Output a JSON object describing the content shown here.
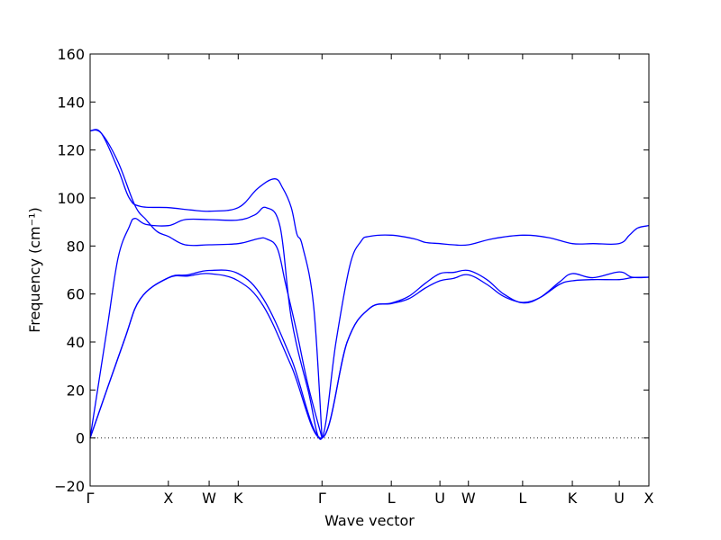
{
  "chart_data": {
    "type": "line",
    "xlabel": "Wave vector",
    "ylabel": "Frequency (cm⁻¹)",
    "ylim": [
      -20,
      160
    ],
    "yticks": [
      -20,
      0,
      20,
      40,
      60,
      80,
      100,
      120,
      140,
      160
    ],
    "xlim": [
      0,
      100
    ],
    "grid": false,
    "zero_line": {
      "y": 0,
      "style": "dotted"
    },
    "high_symmetry_points": [
      {
        "label": "Γ",
        "x": 0
      },
      {
        "label": "X",
        "x": 14
      },
      {
        "label": "W",
        "x": 21.3
      },
      {
        "label": "K",
        "x": 26.5
      },
      {
        "label": "Γ",
        "x": 41.5
      },
      {
        "label": "L",
        "x": 53.9
      },
      {
        "label": "U",
        "x": 62.6
      },
      {
        "label": "W",
        "x": 67.7
      },
      {
        "label": "L",
        "x": 77.4
      },
      {
        "label": "K",
        "x": 86.3
      },
      {
        "label": "U",
        "x": 94.7
      },
      {
        "label": "X",
        "x": 100
      }
    ],
    "series": [
      {
        "values": [
          [
            0,
            0
          ],
          [
            6,
            40
          ],
          [
            9,
            58
          ],
          [
            14,
            66.7
          ],
          [
            17.5,
            67.5
          ],
          [
            21.3,
            68.5
          ],
          [
            26.5,
            65.5
          ],
          [
            31,
            55
          ],
          [
            36,
            30
          ],
          [
            41.5,
            0
          ],
          [
            46,
            40
          ],
          [
            50,
            54
          ],
          [
            53.9,
            56
          ],
          [
            57,
            58
          ],
          [
            60,
            62.5
          ],
          [
            62.6,
            65.5
          ],
          [
            65,
            66.5
          ],
          [
            67.7,
            68
          ],
          [
            71,
            64
          ],
          [
            74,
            59
          ],
          [
            77.4,
            56.5
          ],
          [
            80.5,
            58.5
          ],
          [
            84,
            64
          ],
          [
            86.3,
            65.5
          ],
          [
            90,
            66
          ],
          [
            94.7,
            66
          ],
          [
            97,
            66.8
          ],
          [
            100,
            67
          ]
        ]
      },
      {
        "values": [
          [
            0,
            0
          ],
          [
            6,
            40
          ],
          [
            9,
            58
          ],
          [
            14,
            66.8
          ],
          [
            17.5,
            68
          ],
          [
            21.3,
            69.8
          ],
          [
            26.5,
            68.5
          ],
          [
            31,
            58
          ],
          [
            36,
            33
          ],
          [
            41.5,
            0
          ],
          [
            46,
            40
          ],
          [
            50,
            54
          ],
          [
            53.9,
            56.2
          ],
          [
            57,
            59
          ],
          [
            60,
            64.5
          ],
          [
            62.6,
            68.5
          ],
          [
            65,
            69
          ],
          [
            67.7,
            69.8
          ],
          [
            71,
            66
          ],
          [
            74,
            60
          ],
          [
            77.4,
            56.3
          ],
          [
            80.5,
            58.5
          ],
          [
            84,
            65
          ],
          [
            86.3,
            68.5
          ],
          [
            90,
            66.8
          ],
          [
            94.7,
            69.2
          ],
          [
            97,
            67
          ],
          [
            100,
            67
          ]
        ]
      },
      {
        "values": [
          [
            0,
            0
          ],
          [
            3,
            45
          ],
          [
            5,
            75
          ],
          [
            7,
            88
          ],
          [
            8,
            91.5
          ],
          [
            10,
            89
          ],
          [
            14,
            88.5
          ],
          [
            17,
            91
          ],
          [
            21.3,
            91
          ],
          [
            26.5,
            90.8
          ],
          [
            29.5,
            93
          ],
          [
            31.5,
            96
          ],
          [
            34,
            88
          ],
          [
            36,
            50
          ],
          [
            39,
            20
          ],
          [
            41.5,
            0
          ],
          [
            44,
            40
          ],
          [
            46.5,
            72
          ],
          [
            48.5,
            82
          ],
          [
            50,
            84
          ],
          [
            53.9,
            84.5
          ],
          [
            58,
            83
          ],
          [
            60,
            81.5
          ],
          [
            62.6,
            81
          ],
          [
            65,
            80.5
          ],
          [
            67.7,
            80.5
          ],
          [
            72,
            83
          ],
          [
            77.4,
            84.5
          ],
          [
            82,
            83.5
          ],
          [
            86.3,
            81
          ],
          [
            90,
            81
          ],
          [
            94.7,
            81
          ],
          [
            96.5,
            84.5
          ],
          [
            98,
            87.5
          ],
          [
            100,
            88.5
          ]
        ]
      },
      {
        "values": [
          [
            0,
            128
          ],
          [
            2,
            127
          ],
          [
            5,
            112
          ],
          [
            7,
            100
          ],
          [
            9,
            96.5
          ],
          [
            14,
            96
          ],
          [
            18,
            95
          ],
          [
            21.3,
            94.5
          ],
          [
            26.5,
            96
          ],
          [
            30,
            104
          ],
          [
            33,
            108
          ],
          [
            34.5,
            104
          ],
          [
            36,
            96
          ],
          [
            37,
            85
          ],
          [
            38,
            80
          ],
          [
            40,
            55
          ],
          [
            41.5,
            0
          ]
        ]
      },
      {
        "values": [
          [
            0,
            128
          ],
          [
            2,
            127
          ],
          [
            5,
            115
          ],
          [
            8,
            97
          ],
          [
            10,
            91
          ],
          [
            12,
            86
          ],
          [
            14,
            84
          ],
          [
            17,
            80.5
          ],
          [
            21.3,
            80.5
          ],
          [
            26.5,
            81
          ],
          [
            30,
            83
          ],
          [
            31.5,
            83
          ],
          [
            33.5,
            79
          ],
          [
            35,
            64
          ],
          [
            37,
            44
          ],
          [
            39,
            22
          ],
          [
            41.5,
            0
          ]
        ]
      }
    ]
  }
}
